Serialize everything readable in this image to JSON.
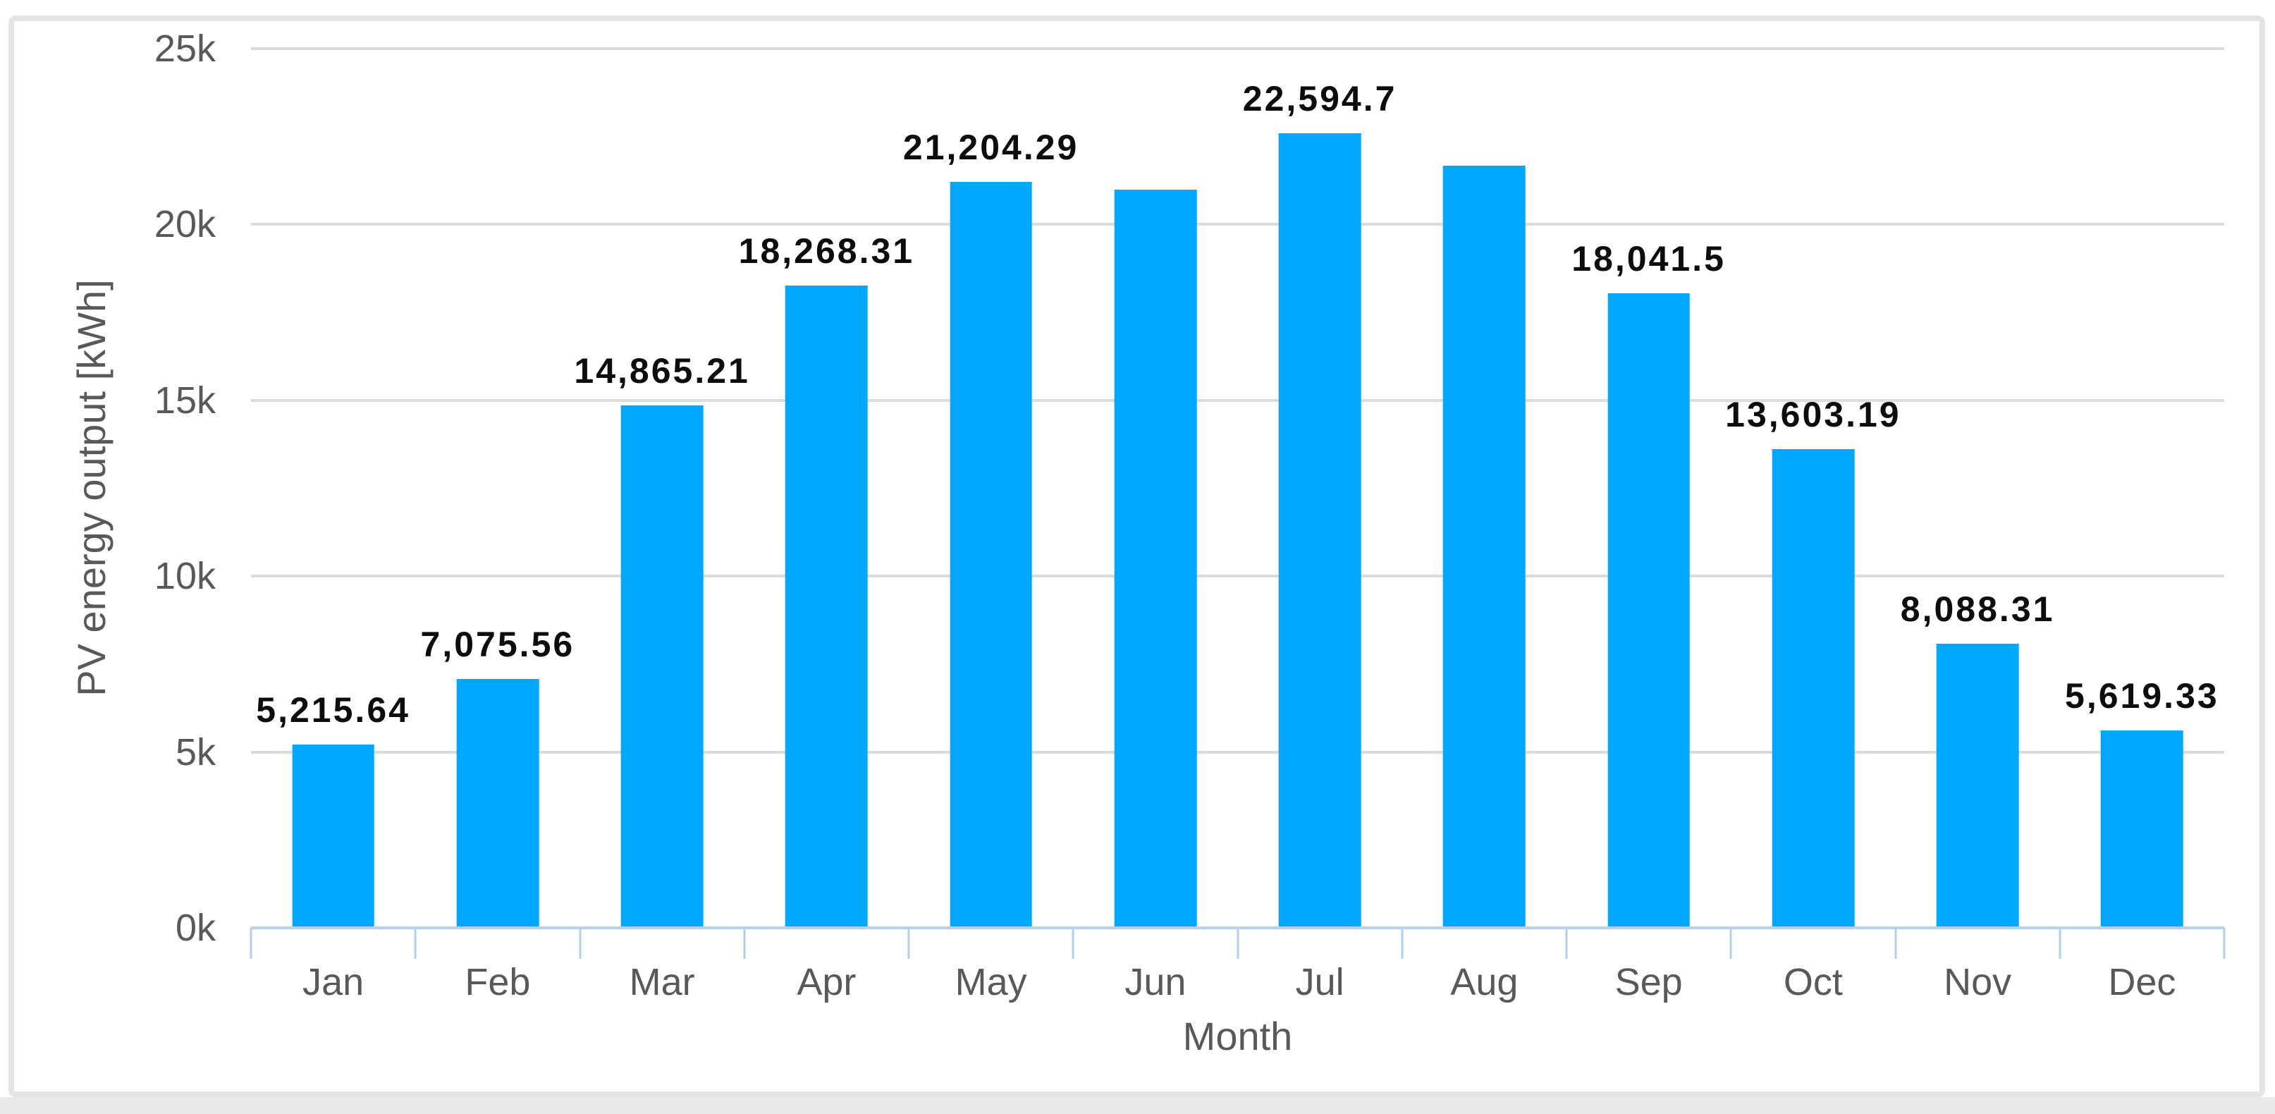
{
  "chart_data": {
    "type": "bar",
    "title": "",
    "xlabel": "Month",
    "ylabel": "PV energy output [kWh]",
    "categories": [
      "Jan",
      "Feb",
      "Mar",
      "Apr",
      "May",
      "Jun",
      "Jul",
      "Aug",
      "Sep",
      "Oct",
      "Nov",
      "Dec"
    ],
    "values": [
      5215.64,
      7075.56,
      14865.21,
      18268.31,
      21204.29,
      21000,
      22594.7,
      21680,
      18041.5,
      13603.19,
      8088.31,
      5619.33
    ],
    "data_labels": [
      "5,215.64",
      "7,075.56",
      "14,865.21",
      "18,268.31",
      "21,204.29",
      null,
      "22,594.7",
      null,
      "18,041.5",
      "13,603.19",
      "8,088.31",
      "5,619.33"
    ],
    "ylim": [
      0,
      25000
    ],
    "ytick_labels": [
      "0k",
      "5k",
      "10k",
      "15k",
      "20k",
      "25k"
    ],
    "grid": "horizontal",
    "legend": "none",
    "bar_color": "#00a8ff"
  },
  "colors": {
    "bar": "#00a8ff",
    "gridline": "#dbdbdb",
    "axis_line": "#b9d2e9",
    "tick_text": "#595959",
    "data_label_text": "#0d0d0d",
    "card_border": "#e4e4e4",
    "background": "#ffffff"
  }
}
